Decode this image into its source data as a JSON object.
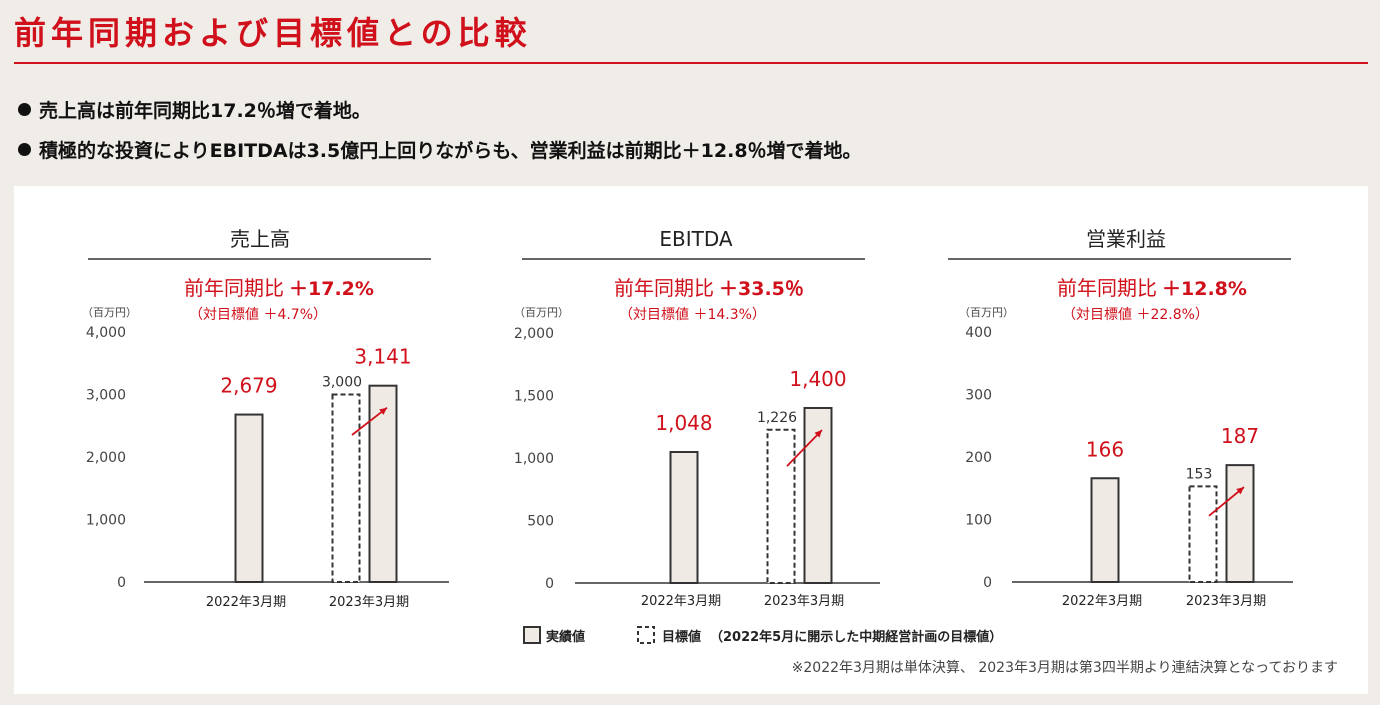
{
  "title": "前年同期および目標値との比較",
  "bullets": [
    "売上高は前年同期比17.2％増で着地。",
    "積極的な投資によりEBITDAは3.5億円上回りながらも、営業利益は前期比＋12.8％増で着地。"
  ],
  "colors": {
    "accent": "#d0101b",
    "bar_fill": "#efebe4",
    "bar_stroke": "#333333",
    "target_stroke": "#333333"
  },
  "chart_data": [
    {
      "type": "bar",
      "title": "売上高",
      "yoy_label": "前年同期比",
      "yoy_value": "＋17.2%",
      "target_note": "（対目標値 ＋4.7%）",
      "unit": "（百万円）",
      "ylim": [
        0,
        4000
      ],
      "yticks": [
        "4,000",
        "3,000",
        "2,000",
        "1,000",
        "0"
      ],
      "yticks_values": [
        4000,
        3000,
        2000,
        1000,
        0
      ],
      "categories": [
        "2022年3月期",
        "2023年3月期"
      ],
      "series": [
        {
          "name": "実績値",
          "values": [
            2679,
            3141
          ],
          "labels": [
            "2,679",
            "3,141"
          ]
        },
        {
          "name": "目標値",
          "values": [
            null,
            3000
          ],
          "labels": [
            "",
            "3,000"
          ]
        }
      ]
    },
    {
      "type": "bar",
      "title": "EBITDA",
      "yoy_label": "前年同期比",
      "yoy_value": "＋33.5％",
      "target_note": "（対目標値 ＋14.3%）",
      "unit": "（百万円）",
      "ylim": [
        0,
        2000
      ],
      "yticks": [
        "2,000",
        "1,500",
        "1,000",
        "500",
        "0"
      ],
      "yticks_values": [
        2000,
        1500,
        1000,
        500,
        0
      ],
      "categories": [
        "2022年3月期",
        "2023年3月期"
      ],
      "series": [
        {
          "name": "実績値",
          "values": [
            1048,
            1400
          ],
          "labels": [
            "1,048",
            "1,400"
          ]
        },
        {
          "name": "目標値",
          "values": [
            null,
            1226
          ],
          "labels": [
            "",
            "1,226"
          ]
        }
      ]
    },
    {
      "type": "bar",
      "title": "営業利益",
      "yoy_label": "前年同期比",
      "yoy_value": "＋12.8%",
      "target_note": "（対目標値 ＋22.8%）",
      "unit": "（百万円）",
      "ylim": [
        0,
        400
      ],
      "yticks": [
        "400",
        "300",
        "200",
        "100",
        "0"
      ],
      "yticks_values": [
        400,
        300,
        200,
        100,
        0
      ],
      "categories": [
        "2022年3月期",
        "2023年3月期"
      ],
      "series": [
        {
          "name": "実績値",
          "values": [
            166,
            187
          ],
          "labels": [
            "166",
            "187"
          ]
        },
        {
          "name": "目標値",
          "values": [
            null,
            153
          ],
          "labels": [
            "",
            "153"
          ]
        }
      ]
    }
  ],
  "legend": {
    "actual": "実績値",
    "target_label": "目標値",
    "target_note": "（2022年5月に開示した中期経営計画の目標値）"
  },
  "footnote": "※2022年3月期は単体決算、 2023年3月期は第3四半期より連結決算となっております"
}
